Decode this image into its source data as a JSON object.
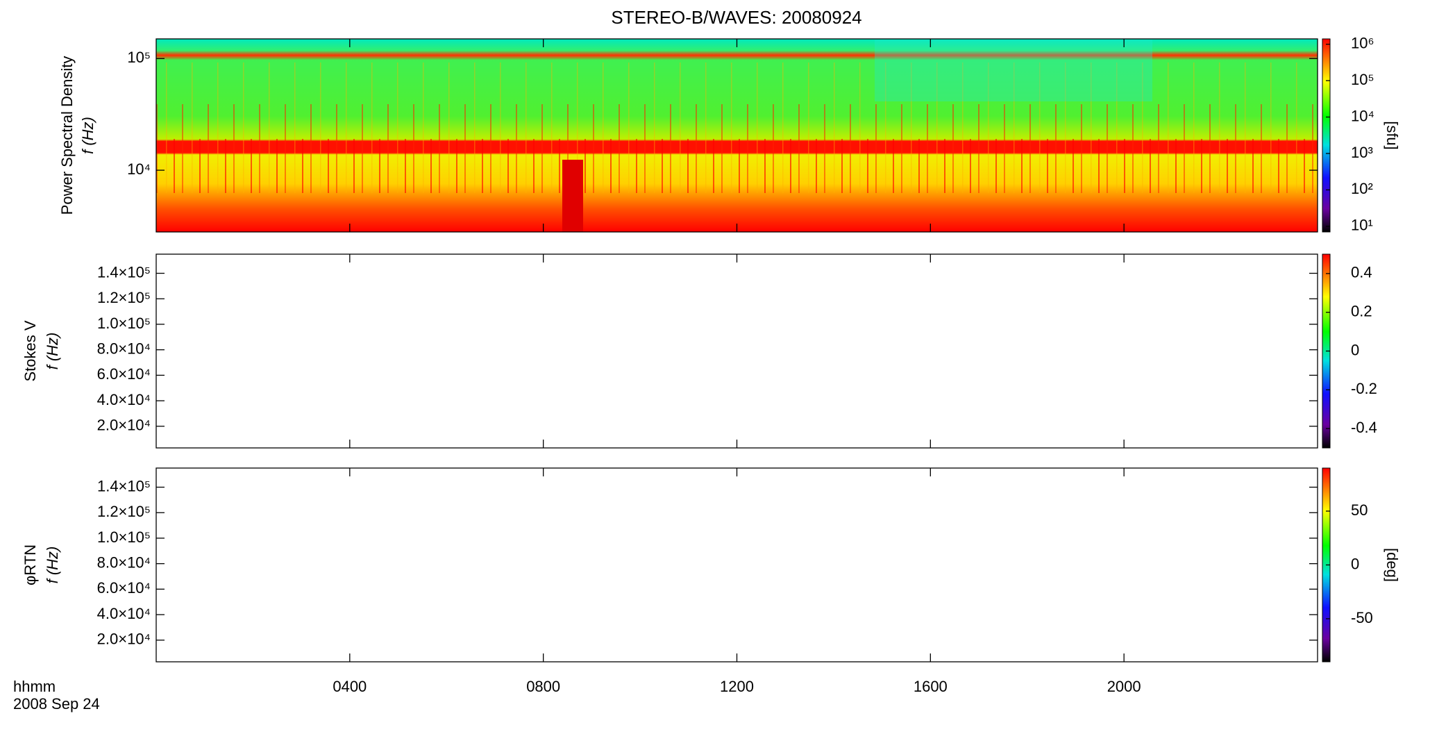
{
  "chart_data": [
    {
      "type": "heatmap",
      "title": "STEREO-B/WAVES: 20080924",
      "ylabel": "Power Spectral Density",
      "ylabel2": "f (Hz)",
      "ylog": true,
      "ylim": [
        2800,
        150000
      ],
      "yticks": [
        {
          "value": 10000,
          "label": "10⁴"
        },
        {
          "value": 100000,
          "label": "10⁵"
        }
      ],
      "colorbar_label": "[sfu]",
      "clog": true,
      "clim": [
        7,
        1400000
      ],
      "cticks": [
        {
          "value": 10,
          "label": "10¹"
        },
        {
          "value": 100,
          "label": "10²"
        },
        {
          "value": 1000,
          "label": "10³"
        },
        {
          "value": 10000,
          "label": "10⁴"
        },
        {
          "value": 100000,
          "label": "10⁵"
        },
        {
          "value": 1000000,
          "label": "10⁶"
        }
      ]
    },
    {
      "type": "heatmap",
      "ylabel": "Stokes V",
      "ylabel2": "f (Hz)",
      "ylog": false,
      "ylim": [
        3000,
        155000
      ],
      "yticks": [
        {
          "value": 20000,
          "label": "2.0×10⁴"
        },
        {
          "value": 40000,
          "label": "4.0×10⁴"
        },
        {
          "value": 60000,
          "label": "6.0×10⁴"
        },
        {
          "value": 80000,
          "label": "8.0×10⁴"
        },
        {
          "value": 100000,
          "label": "1.0×10⁵"
        },
        {
          "value": 120000,
          "label": "1.2×10⁵"
        },
        {
          "value": 140000,
          "label": "1.4×10⁵"
        }
      ],
      "clog": false,
      "clim": [
        -0.5,
        0.5
      ],
      "cticks": [
        -0.4,
        -0.2,
        0.0,
        0.2,
        0.4
      ]
    },
    {
      "type": "heatmap",
      "ylabel": "φRTN",
      "ylabel2": "f (Hz)",
      "ylog": false,
      "ylim": [
        3000,
        155000
      ],
      "yticks": [
        {
          "value": 20000,
          "label": "2.0×10⁴"
        },
        {
          "value": 40000,
          "label": "4.0×10⁴"
        },
        {
          "value": 60000,
          "label": "6.0×10⁴"
        },
        {
          "value": 80000,
          "label": "8.0×10⁴"
        },
        {
          "value": 100000,
          "label": "1.0×10⁵"
        },
        {
          "value": 120000,
          "label": "1.2×10⁵"
        },
        {
          "value": 140000,
          "label": "1.4×10⁵"
        }
      ],
      "colorbar_label": "[deg]",
      "clog": false,
      "clim": [
        -90,
        90
      ],
      "cticks": [
        -50,
        0,
        50
      ],
      "xlabel": "hhmm",
      "xlabel2": "2008 Sep 24",
      "xlim": [
        0,
        24
      ],
      "xticks": [
        {
          "value": 4,
          "label": "0400"
        },
        {
          "value": 8,
          "label": "0800"
        },
        {
          "value": 12,
          "label": "1200"
        },
        {
          "value": 16,
          "label": "1600"
        },
        {
          "value": 20,
          "label": "2000"
        }
      ]
    }
  ]
}
